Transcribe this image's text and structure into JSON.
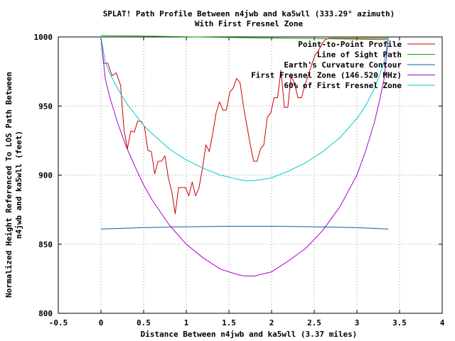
{
  "chart_data": {
    "type": "line",
    "title": "SPLAT! Path Profile Between n4jwb and ka5wll (333.29° azimuth)",
    "subtitle": "With First Fresnel Zone",
    "xlabel": "Distance Between n4jwb and ka5wll (3.37 miles)",
    "ylabel_lines": [
      "Normalized Height Referenced To LOS Path Between",
      "n4jwb and ka5wll (feet)"
    ],
    "xlim": [
      -0.5,
      4
    ],
    "ylim": [
      800,
      1000
    ],
    "xticks": [
      -0.5,
      0,
      0.5,
      1,
      1.5,
      2,
      2.5,
      3,
      3.5,
      4
    ],
    "xtick_labels": [
      "-0.5",
      "0",
      "0.5",
      "1",
      "1.5",
      "2",
      "2.5",
      "3",
      "3.5",
      "4"
    ],
    "yticks": [
      800,
      850,
      900,
      950,
      1000
    ],
    "ytick_labels": [
      "800",
      "850",
      "900",
      "950",
      "1000"
    ],
    "grid": true,
    "legend_position": "top-right",
    "series": [
      {
        "name": "Point-to-Point Profile",
        "color": "#cc0000",
        "x": [
          0,
          0.03,
          0.08,
          0.13,
          0.18,
          0.23,
          0.27,
          0.31,
          0.35,
          0.39,
          0.43,
          0.47,
          0.51,
          0.55,
          0.59,
          0.63,
          0.67,
          0.71,
          0.75,
          0.79,
          0.83,
          0.87,
          0.91,
          0.95,
          0.99,
          1.03,
          1.07,
          1.11,
          1.15,
          1.19,
          1.23,
          1.27,
          1.31,
          1.35,
          1.39,
          1.43,
          1.47,
          1.51,
          1.55,
          1.59,
          1.63,
          1.67,
          1.71,
          1.75,
          1.79,
          1.83,
          1.87,
          1.91,
          1.95,
          1.99,
          2.03,
          2.07,
          2.11,
          2.15,
          2.19,
          2.23,
          2.27,
          2.31,
          2.35,
          2.39,
          2.43,
          2.47,
          2.51,
          2.55,
          2.59,
          2.63,
          2.67,
          2.71,
          2.75,
          2.79,
          2.83,
          2.87,
          2.91,
          2.95,
          2.99,
          3.03,
          3.07,
          3.11,
          3.15,
          3.19,
          3.23,
          3.27,
          3.31,
          3.35,
          3.37
        ],
        "values": [
          1000,
          981,
          981,
          972,
          974,
          965,
          933,
          919,
          932,
          931,
          939,
          939,
          935,
          918,
          917,
          901,
          910,
          910,
          914,
          898,
          888,
          872,
          891,
          891,
          891,
          885,
          895,
          885,
          891,
          905,
          922,
          917,
          930,
          945,
          953,
          947,
          947,
          960,
          963,
          970,
          967,
          950,
          936,
          922,
          910,
          910,
          919,
          922,
          942,
          945,
          956,
          956,
          976,
          949,
          949,
          972,
          966,
          956,
          956,
          965,
          972,
          980,
          987,
          990,
          995,
          998,
          999,
          999,
          999,
          999,
          999,
          999,
          999,
          999,
          999,
          999,
          999,
          999,
          999,
          999,
          999,
          999,
          999,
          999,
          999
        ]
      },
      {
        "name": "Line of Sight Path",
        "color": "#00aa00",
        "x": [
          0,
          0.5,
          1,
          1.5,
          2,
          2.5,
          3,
          3.37
        ],
        "values": [
          1001,
          1000.6,
          1000.1,
          999.6,
          999.2,
          998.8,
          998.4,
          998
        ]
      },
      {
        "name": "Earth's Curvature Contour",
        "color": "#0066aa",
        "x": [
          0,
          0.5,
          1,
          1.5,
          2,
          2.5,
          3,
          3.37
        ],
        "values": [
          861,
          862,
          862.6,
          863,
          863,
          862.6,
          862,
          861
        ]
      },
      {
        "name": "First Fresnel Zone (146.520 MHz)",
        "color": "#aa00cc",
        "x": [
          0,
          0.05,
          0.1,
          0.2,
          0.3,
          0.4,
          0.5,
          0.6,
          0.8,
          1,
          1.2,
          1.4,
          1.6,
          1.685,
          1.8,
          2,
          2.2,
          2.4,
          2.6,
          2.8,
          3,
          3.1,
          3.2,
          3.27,
          3.32,
          3.37
        ],
        "values": [
          1000,
          970,
          957,
          937,
          920,
          906,
          893,
          882,
          864,
          850,
          840,
          832,
          828,
          827,
          827,
          830,
          838,
          847,
          860,
          877,
          900,
          917,
          937,
          955,
          970,
          1000
        ]
      },
      {
        "name": "60% of First Fresnel Zone",
        "color": "#00cccc",
        "x": [
          0,
          0.05,
          0.1,
          0.2,
          0.3,
          0.4,
          0.5,
          0.6,
          0.8,
          1,
          1.2,
          1.4,
          1.6,
          1.685,
          1.8,
          2,
          2.2,
          2.4,
          2.6,
          2.8,
          3,
          3.1,
          3.2,
          3.27,
          3.32,
          3.37
        ],
        "values": [
          1000,
          982,
          974,
          962,
          952,
          944,
          936,
          930,
          919,
          911,
          905,
          900,
          897,
          896,
          896,
          898,
          903,
          909,
          917,
          927,
          941,
          950,
          962,
          973,
          982,
          1000
        ]
      }
    ]
  }
}
